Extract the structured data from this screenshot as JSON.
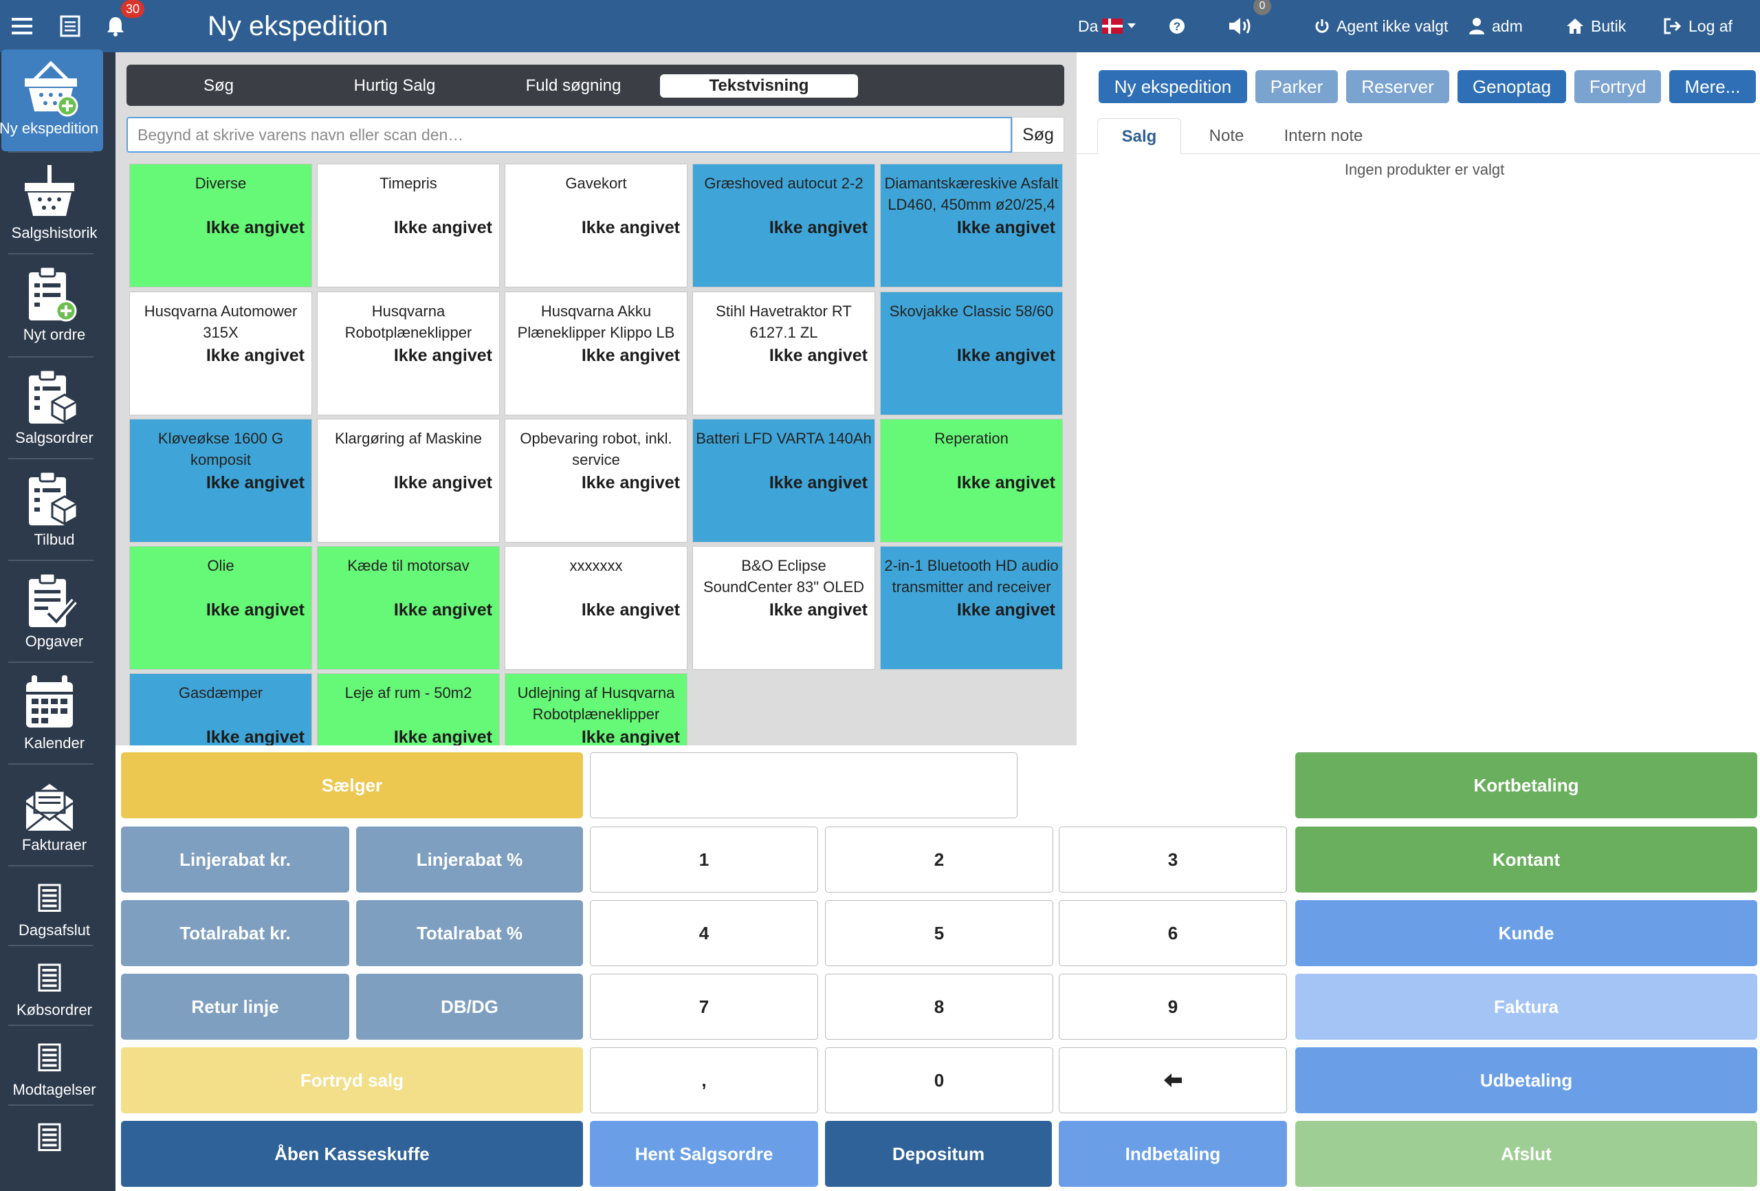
{
  "header": {
    "title": "Ny ekspedition",
    "notifications_count": "30",
    "volume_count": "0",
    "language": "Da",
    "agent": "Agent ikke valgt",
    "user": "adm",
    "shop": "Butik",
    "logout": "Log af"
  },
  "sidebar": {
    "items": [
      {
        "label": "Ny ekspedition",
        "icon": "basket-add-icon"
      },
      {
        "label": "Salgshistorik",
        "icon": "basket-icon"
      },
      {
        "label": "Nyt ordre",
        "icon": "clipboard-add-icon"
      },
      {
        "label": "Salgsordrer",
        "icon": "clipboard-box-icon"
      },
      {
        "label": "Tilbud",
        "icon": "clipboard-box-icon"
      },
      {
        "label": "Opgaver",
        "icon": "clipboard-check-icon"
      },
      {
        "label": "Kalender",
        "icon": "calendar-icon"
      },
      {
        "label": "Fakturaer",
        "icon": "envelope-icon"
      },
      {
        "label": "Dagsafslut",
        "icon": "list-icon"
      },
      {
        "label": "Købsordrer",
        "icon": "list-icon"
      },
      {
        "label": "Modtagelser",
        "icon": "list-icon"
      },
      {
        "label": "",
        "icon": "list-icon"
      }
    ]
  },
  "search_tabs": [
    "Søg",
    "Hurtig Salg",
    "Fuld søgning",
    "Tekstvisning"
  ],
  "search": {
    "placeholder": "Begynd at skrive varens navn eller scan den…",
    "button": "Søg"
  },
  "products": [
    {
      "name": "Diverse",
      "price": "Ikke angivet",
      "color": "green"
    },
    {
      "name": "Timepris",
      "price": "Ikke angivet",
      "color": "white"
    },
    {
      "name": "Gavekort",
      "price": "Ikke angivet",
      "color": "white"
    },
    {
      "name": "Græshoved autocut 2-2",
      "price": "Ikke angivet",
      "color": "blue"
    },
    {
      "name": "Diamantskæreskive Asfalt LD460, 450mm ø20/25,4",
      "price": "Ikke angivet",
      "color": "blue"
    },
    {
      "name": "Husqvarna Automower 315X",
      "price": "Ikke angivet",
      "color": "white"
    },
    {
      "name": "Husqvarna Robotplæneklipper",
      "price": "Ikke angivet",
      "color": "white"
    },
    {
      "name": "Husqvarna Akku Plæneklipper Klippo LB",
      "price": "Ikke angivet",
      "color": "white"
    },
    {
      "name": "Stihl Havetraktor RT 6127.1 ZL",
      "price": "Ikke angivet",
      "color": "white"
    },
    {
      "name": "Skovjakke Classic 58/60",
      "price": "Ikke angivet",
      "color": "blue"
    },
    {
      "name": "Kløveøkse 1600 G komposit",
      "price": "Ikke angivet",
      "color": "blue"
    },
    {
      "name": "Klargøring af Maskine",
      "price": "Ikke angivet",
      "color": "white"
    },
    {
      "name": "Opbevaring robot, inkl. service",
      "price": "Ikke angivet",
      "color": "white"
    },
    {
      "name": "Batteri LFD VARTA 140Ah",
      "price": "Ikke angivet",
      "color": "blue"
    },
    {
      "name": "Reperation",
      "price": "Ikke angivet",
      "color": "green"
    },
    {
      "name": "Olie",
      "price": "Ikke angivet",
      "color": "green"
    },
    {
      "name": "Kæde til motorsav",
      "price": "Ikke angivet",
      "color": "green"
    },
    {
      "name": "xxxxxxx",
      "price": "Ikke angivet",
      "color": "white"
    },
    {
      "name": "B&O Eclipse SoundCenter 83\" OLED",
      "price": "Ikke angivet",
      "color": "white"
    },
    {
      "name": "2-in-1 Bluetooth HD audio transmitter and receiver",
      "price": "Ikke angivet",
      "color": "blue"
    },
    {
      "name": "Gasdæmper",
      "price": "Ikke angivet",
      "color": "blue"
    },
    {
      "name": "Leje af rum - 50m2",
      "price": "Ikke angivet",
      "color": "green"
    },
    {
      "name": "Udlejning af Husqvarna Robotplæneklipper",
      "price": "Ikke angivet",
      "color": "green"
    }
  ],
  "right_buttons": [
    "Ny ekspedition",
    "Parker",
    "Reserver",
    "Genoptag",
    "Fortryd",
    "Mere..."
  ],
  "right_tabs": [
    "Salg",
    "Note",
    "Intern note"
  ],
  "empty_message": "Ingen produkter er valgt",
  "keypad": {
    "seller": "Sælger",
    "line_discount_kr": "Linjerabat kr.",
    "line_discount_pct": "Linjerabat %",
    "total_discount_kr": "Totalrabat kr.",
    "total_discount_pct": "Totalrabat %",
    "return_line": "Retur linje",
    "dbdg": "DB/DG",
    "undo_sale": "Fortryd salg",
    "open_drawer": "Åben Kasseskuffe",
    "fetch_order": "Hent Salgsordre",
    "deposit": "Depositum",
    "payment_in": "Indbetaling",
    "card": "Kortbetaling",
    "cash": "Kontant",
    "customer": "Kunde",
    "invoice": "Faktura",
    "payout": "Udbetaling",
    "finish": "Afslut",
    "digits": [
      "1",
      "2",
      "3",
      "4",
      "5",
      "6",
      "7",
      "8",
      "9",
      ",",
      "0"
    ]
  }
}
